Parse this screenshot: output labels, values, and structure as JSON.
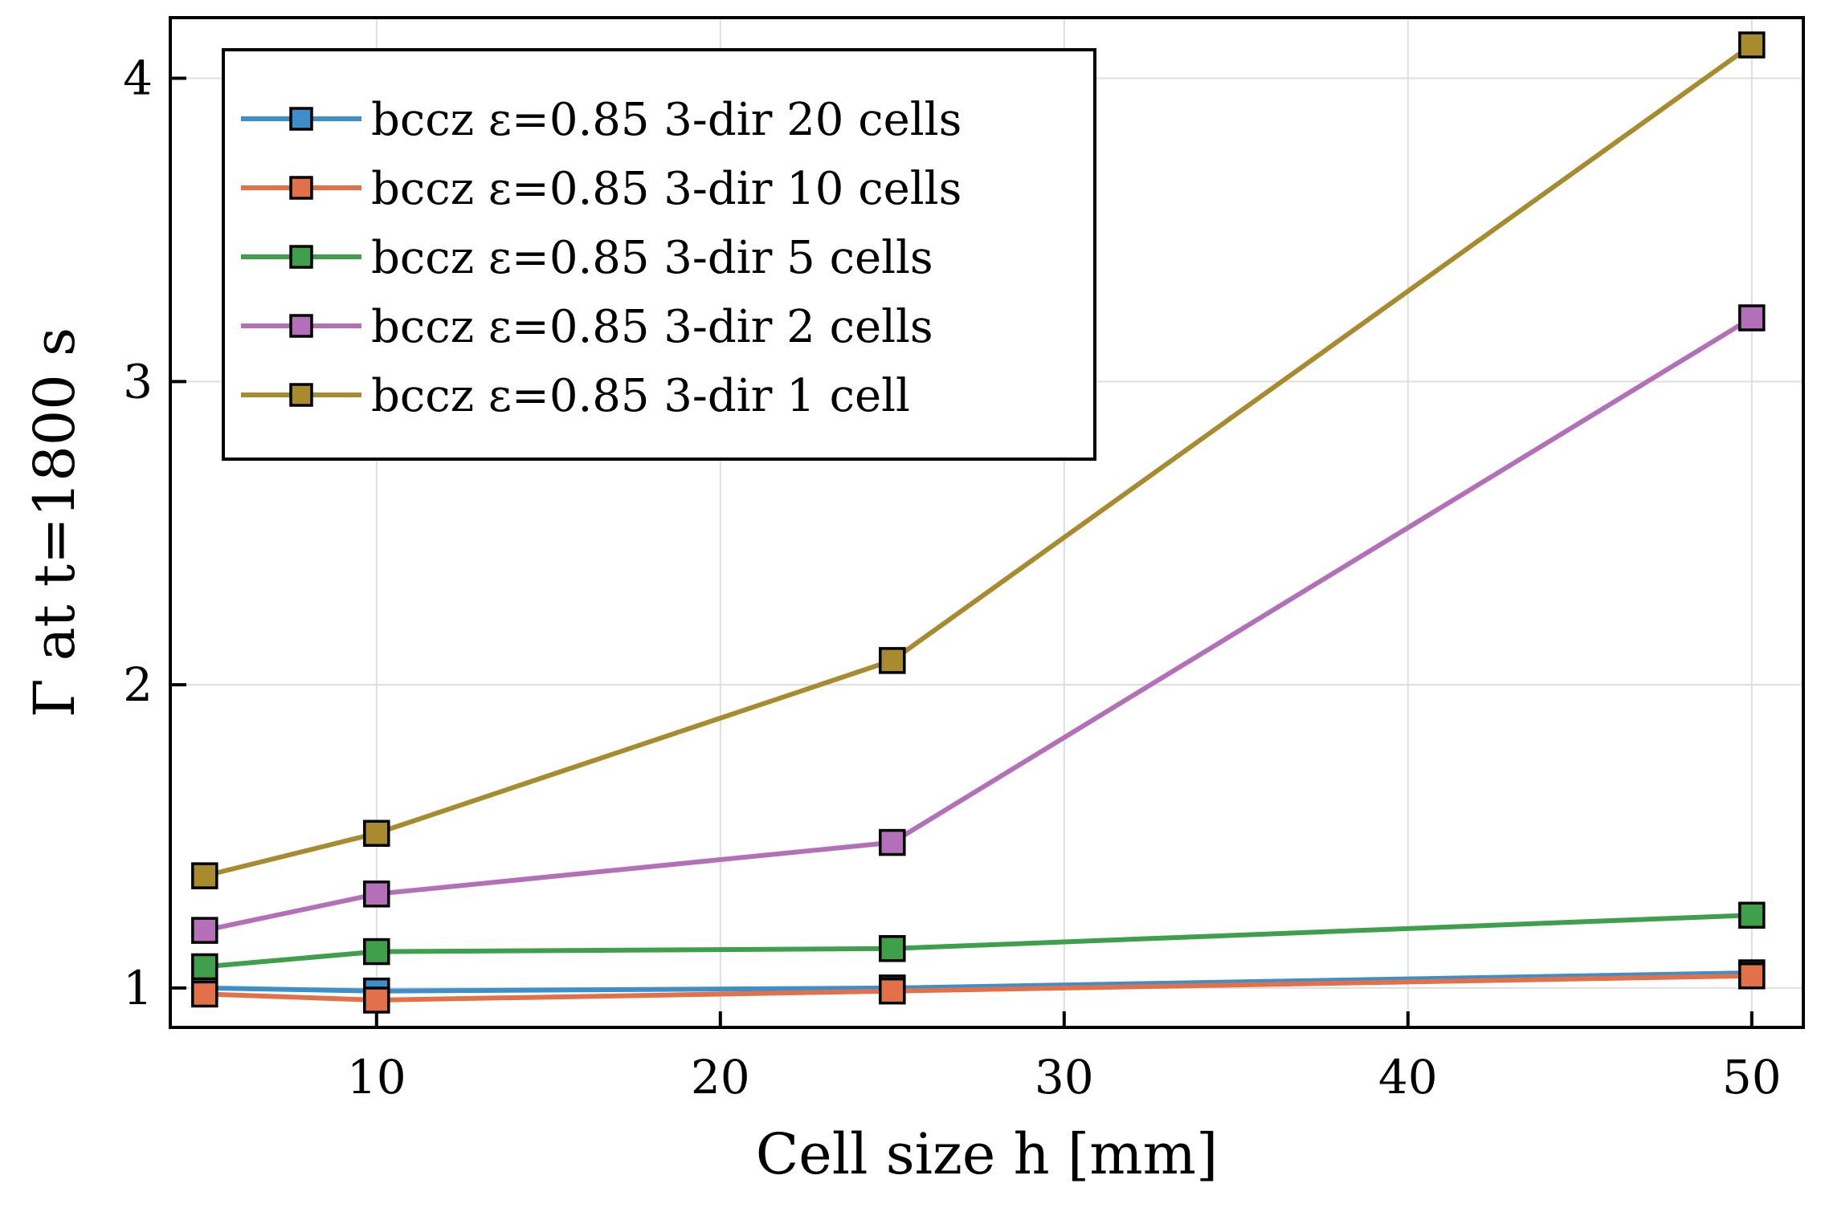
{
  "chart_data": {
    "type": "line",
    "title": "",
    "xlabel": "Cell size h [mm]",
    "ylabel": "Γ at t=1800 s",
    "xlim": [
      4.0,
      51.5
    ],
    "ylim": [
      0.87,
      4.2
    ],
    "x_ticks": [
      10,
      20,
      30,
      40,
      50
    ],
    "y_ticks": [
      1,
      2,
      3,
      4
    ],
    "grid": true,
    "legend_position": "top-left",
    "marker": "square",
    "x": [
      5,
      10,
      25,
      50
    ],
    "series": [
      {
        "name": "bccz ε=0.85 3-dir 20 cells",
        "color": "#3d8fcc",
        "values": [
          1.0,
          0.99,
          1.0,
          1.05
        ]
      },
      {
        "name": "bccz ε=0.85 3-dir 10 cells",
        "color": "#e2714a",
        "values": [
          0.98,
          0.96,
          0.99,
          1.04
        ]
      },
      {
        "name": "bccz ε=0.85 3-dir 5 cells",
        "color": "#3ea04a",
        "values": [
          1.07,
          1.12,
          1.13,
          1.24
        ]
      },
      {
        "name": "bccz ε=0.85 3-dir 2 cells",
        "color": "#b370b9",
        "values": [
          1.19,
          1.31,
          1.48,
          3.21
        ]
      },
      {
        "name": "bccz ε=0.85 3-dir 1 cell",
        "color": "#a88b2e",
        "values": [
          1.37,
          1.51,
          2.08,
          4.11
        ]
      }
    ]
  }
}
